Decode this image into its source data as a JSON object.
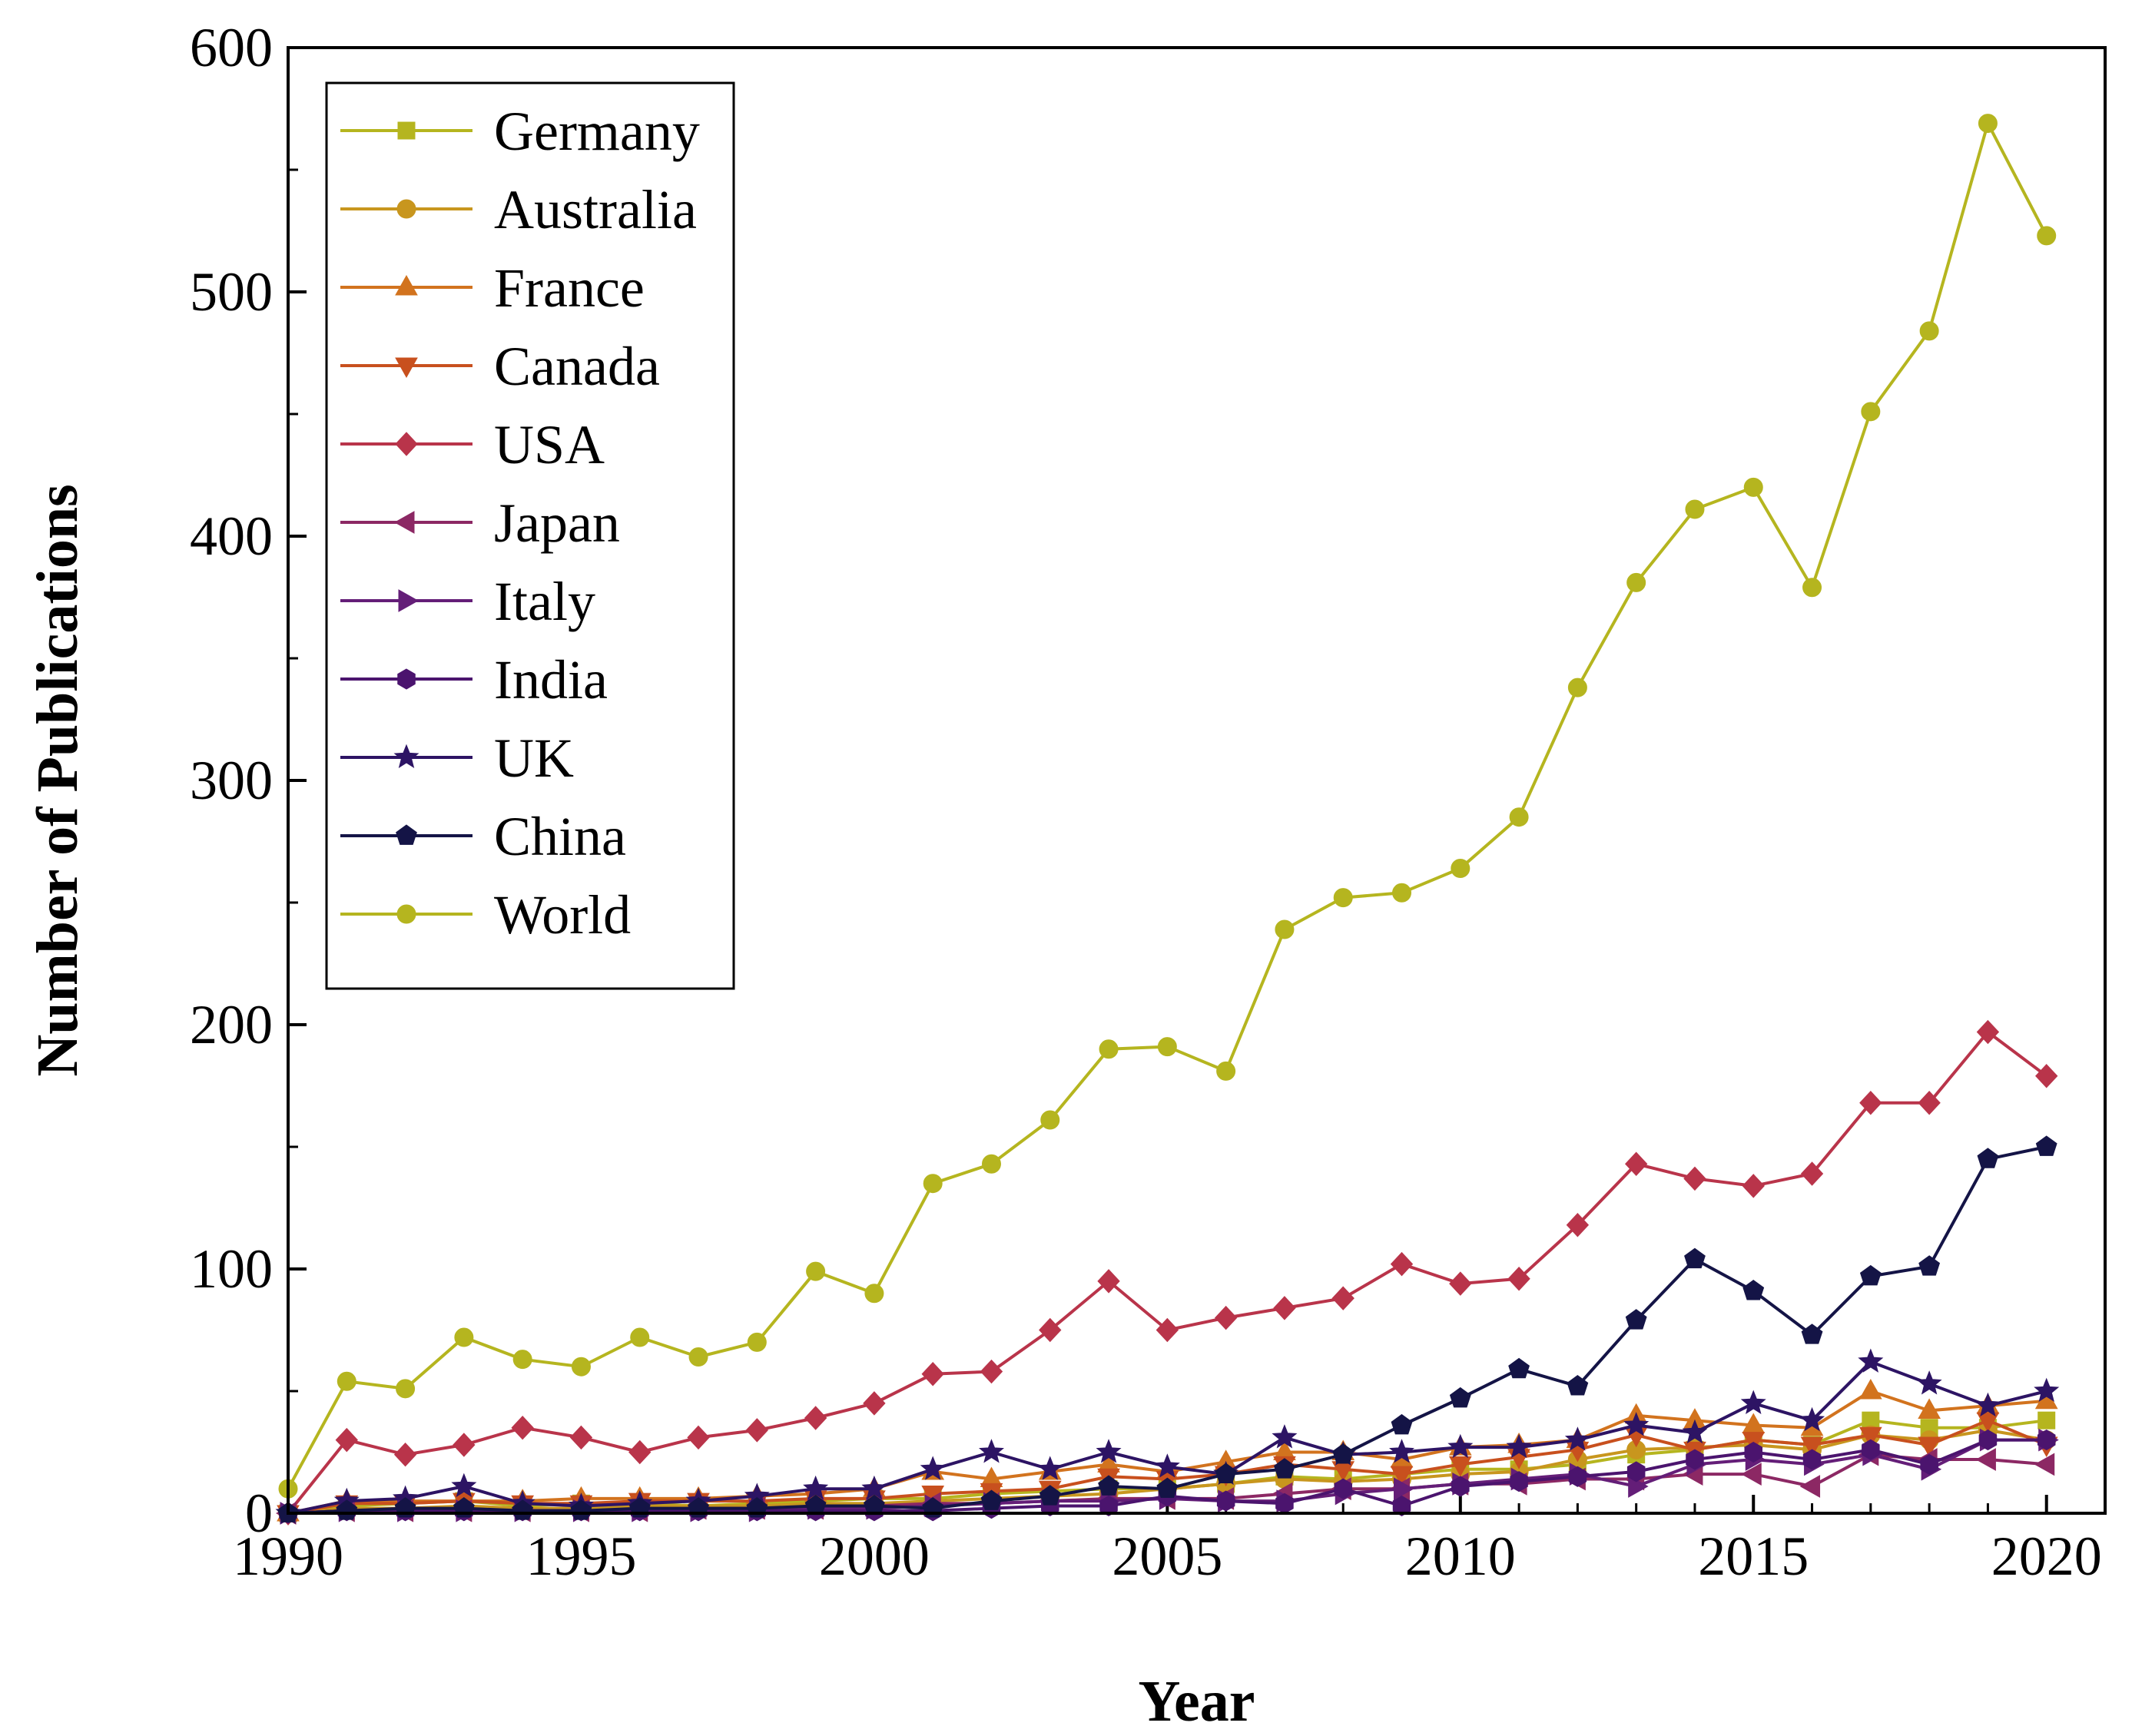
{
  "chart_data": {
    "type": "line",
    "title": "",
    "xlabel": "Year",
    "ylabel": "Number of Publications",
    "xlim": [
      1990,
      2021
    ],
    "ylim": [
      0,
      600
    ],
    "xticks": [
      1990,
      1995,
      2000,
      2005,
      2010,
      2015,
      2020
    ],
    "yticks": [
      0,
      100,
      200,
      300,
      400,
      500,
      600
    ],
    "legend_position": "top-left",
    "x": [
      1990,
      1991,
      1992,
      1993,
      1994,
      1995,
      1996,
      1997,
      1998,
      1999,
      2000,
      2001,
      2002,
      2003,
      2004,
      2005,
      2006,
      2007,
      2008,
      2009,
      2010,
      2011,
      2012,
      2013,
      2014,
      2015,
      2016,
      2017,
      2018,
      2019,
      2020
    ],
    "series": [
      {
        "name": "Germany",
        "marker": "square",
        "color": "#B5B51F",
        "values": [
          0,
          3,
          4,
          5,
          3,
          4,
          4,
          3,
          4,
          5,
          6,
          6,
          8,
          9,
          10,
          10,
          12,
          15,
          14,
          16,
          18,
          18,
          20,
          24,
          26,
          30,
          28,
          38,
          35,
          35,
          38
        ]
      },
      {
        "name": "Australia",
        "marker": "circle",
        "color": "#C8961E",
        "values": [
          0,
          2,
          2,
          3,
          2,
          2,
          3,
          3,
          3,
          4,
          4,
          5,
          6,
          7,
          8,
          10,
          12,
          14,
          13,
          14,
          16,
          17,
          22,
          26,
          27,
          28,
          26,
          32,
          30,
          34,
          30
        ]
      },
      {
        "name": "France",
        "marker": "triangle-up",
        "color": "#D2731E",
        "values": [
          0,
          5,
          5,
          5,
          5,
          6,
          6,
          6,
          7,
          8,
          10,
          17,
          14,
          17,
          20,
          17,
          21,
          25,
          25,
          22,
          27,
          28,
          30,
          40,
          38,
          36,
          35,
          50,
          42,
          44,
          46
        ]
      },
      {
        "name": "Canada",
        "marker": "triangle-down",
        "color": "#C8501E",
        "values": [
          0,
          4,
          4,
          5,
          4,
          4,
          5,
          5,
          5,
          6,
          6,
          8,
          9,
          10,
          15,
          14,
          16,
          20,
          18,
          16,
          20,
          23,
          26,
          32,
          26,
          30,
          28,
          32,
          28,
          38,
          28
        ]
      },
      {
        "name": "USA",
        "marker": "diamond",
        "color": "#B9344A",
        "values": [
          0,
          30,
          24,
          28,
          35,
          31,
          25,
          31,
          34,
          39,
          45,
          57,
          58,
          75,
          95,
          75,
          80,
          84,
          88,
          102,
          94,
          96,
          118,
          143,
          137,
          134,
          139,
          168,
          168,
          197,
          179
        ]
      },
      {
        "name": "Japan",
        "marker": "triangle-left",
        "color": "#8C2864",
        "values": [
          0,
          1,
          1,
          1,
          1,
          1,
          1,
          2,
          2,
          2,
          3,
          4,
          4,
          5,
          6,
          6,
          6,
          8,
          10,
          10,
          12,
          12,
          14,
          14,
          16,
          16,
          11,
          24,
          22,
          22,
          20
        ]
      },
      {
        "name": "Italy",
        "marker": "triangle-right",
        "color": "#641E78",
        "values": [
          0,
          1,
          1,
          1,
          1,
          1,
          1,
          1,
          1,
          2,
          2,
          3,
          4,
          5,
          5,
          6,
          5,
          5,
          8,
          10,
          12,
          14,
          16,
          11,
          20,
          22,
          20,
          24,
          18,
          30,
          30
        ]
      },
      {
        "name": "India",
        "marker": "hexagon",
        "color": "#4B146E",
        "values": [
          0,
          1,
          1,
          1,
          1,
          1,
          1,
          1,
          1,
          1,
          1,
          1,
          2,
          3,
          3,
          7,
          5,
          4,
          10,
          3,
          11,
          13,
          15,
          17,
          22,
          25,
          22,
          26,
          20,
          30,
          30
        ]
      },
      {
        "name": "UK",
        "marker": "star",
        "color": "#2D1464",
        "values": [
          0,
          5,
          6,
          11,
          4,
          3,
          4,
          5,
          7,
          10,
          10,
          18,
          25,
          18,
          25,
          19,
          16,
          31,
          24,
          25,
          27,
          27,
          30,
          36,
          33,
          45,
          38,
          62,
          53,
          44,
          50
        ]
      },
      {
        "name": "China",
        "marker": "pentagon",
        "color": "#141446",
        "values": [
          0,
          1,
          2,
          2,
          1,
          1,
          2,
          2,
          2,
          3,
          3,
          2,
          5,
          7,
          11,
          10,
          16,
          18,
          24,
          36,
          47,
          59,
          52,
          79,
          104,
          91,
          73,
          97,
          101,
          145,
          150
        ]
      },
      {
        "name": "World",
        "marker": "circle",
        "color": "#B5B51F",
        "values": [
          10,
          54,
          51,
          72,
          63,
          60,
          72,
          64,
          70,
          99,
          90,
          135,
          143,
          161,
          190,
          191,
          181,
          239,
          252,
          254,
          264,
          285,
          338,
          381,
          411,
          420,
          379,
          451,
          484,
          569,
          523
        ]
      }
    ]
  }
}
